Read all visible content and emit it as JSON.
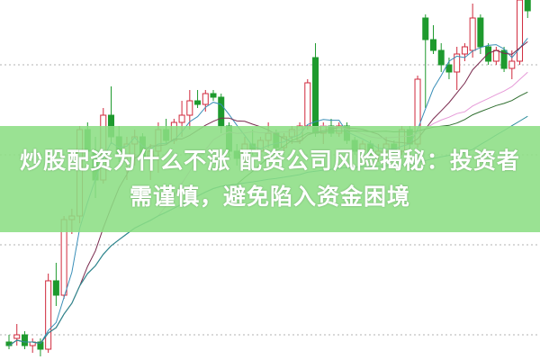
{
  "title_line1": "炒股配资为什么不涨 配资公司风险揭秘：投资者",
  "title_line2": "需谨慎，避免陷入资金困境",
  "colors": {
    "up": "#d0283c",
    "down": "#1e9a2e",
    "banner": "#8cde84",
    "grid": "#b0b0b0",
    "ma": [
      "#3a8fb8",
      "#7a2a4e",
      "#e69ad8",
      "#2f6e2f",
      "#2a8c9a"
    ]
  },
  "chart_data": {
    "type": "candlestick",
    "grid": "horizontal dotted",
    "ma_periods": [
      5,
      10,
      20,
      30,
      60
    ],
    "ohlc": [
      [
        5,
        7,
        3,
        4
      ],
      [
        6,
        10,
        4,
        7
      ],
      [
        7,
        8,
        3,
        4
      ],
      [
        4,
        6,
        2,
        5
      ],
      [
        5,
        6,
        1,
        3
      ],
      [
        3,
        24,
        2,
        22
      ],
      [
        22,
        27,
        15,
        18
      ],
      [
        18,
        40,
        17,
        39
      ],
      [
        39,
        42,
        35,
        40
      ],
      [
        40,
        65,
        38,
        64
      ],
      [
        64,
        66,
        55,
        58
      ],
      [
        58,
        62,
        45,
        50
      ],
      [
        50,
        70,
        49,
        68
      ],
      [
        68,
        76,
        60,
        62
      ],
      [
        62,
        65,
        55,
        57
      ],
      [
        57,
        62,
        50,
        60
      ],
      [
        60,
        64,
        54,
        62
      ],
      [
        62,
        63,
        55,
        56
      ],
      [
        56,
        60,
        50,
        58
      ],
      [
        58,
        66,
        52,
        64
      ],
      [
        64,
        67,
        60,
        61
      ],
      [
        61,
        67,
        60,
        66
      ],
      [
        66,
        72,
        62,
        68
      ],
      [
        68,
        75,
        64,
        72
      ],
      [
        72,
        75,
        70,
        71
      ],
      [
        71,
        75,
        69,
        74
      ],
      [
        74,
        75,
        72,
        73
      ],
      [
        73,
        74,
        63,
        65
      ],
      [
        65,
        66,
        56,
        58
      ],
      [
        58,
        60,
        54,
        56
      ],
      [
        56,
        62,
        54,
        60
      ],
      [
        60,
        64,
        57,
        58
      ],
      [
        58,
        62,
        56,
        61
      ],
      [
        61,
        66,
        59,
        63
      ],
      [
        63,
        64,
        58,
        59
      ],
      [
        59,
        63,
        58,
        62
      ],
      [
        62,
        65,
        60,
        64
      ],
      [
        61,
        66,
        60,
        65
      ],
      [
        65,
        78,
        64,
        77
      ],
      [
        84,
        88,
        62,
        63
      ],
      [
        63,
        66,
        60,
        65
      ],
      [
        65,
        67,
        62,
        63
      ],
      [
        63,
        66,
        62,
        65
      ],
      [
        65,
        66,
        60,
        61
      ],
      [
        61,
        62,
        57,
        58
      ],
      [
        58,
        61,
        56,
        60
      ],
      [
        60,
        61,
        56,
        57
      ],
      [
        57,
        60,
        55,
        58
      ],
      [
        58,
        62,
        56,
        60
      ],
      [
        60,
        61,
        57,
        58
      ],
      [
        58,
        65,
        57,
        64
      ],
      [
        64,
        65,
        58,
        60
      ],
      [
        60,
        79,
        59,
        78
      ],
      [
        95,
        96,
        70,
        89
      ],
      [
        89,
        93,
        85,
        86
      ],
      [
        86,
        88,
        80,
        82
      ],
      [
        82,
        84,
        78,
        80
      ],
      [
        80,
        87,
        75,
        85
      ],
      [
        85,
        88,
        83,
        87
      ],
      [
        86,
        99,
        84,
        95
      ],
      [
        95,
        96,
        85,
        87
      ],
      [
        87,
        88,
        82,
        83
      ],
      [
        83,
        87,
        82,
        86
      ],
      [
        86,
        87,
        80,
        81
      ],
      [
        81,
        86,
        78,
        83
      ],
      [
        83,
        100,
        82,
        100
      ],
      [
        100,
        100,
        95,
        97
      ]
    ],
    "ylim": [
      0,
      100
    ]
  }
}
